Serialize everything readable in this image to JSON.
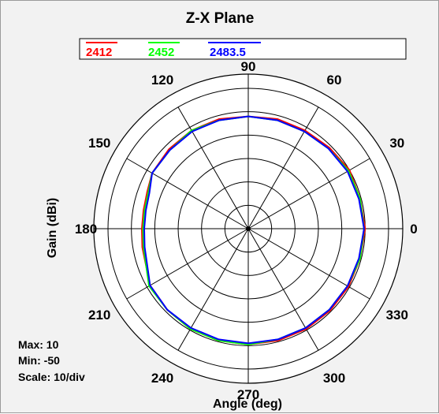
{
  "chart_data": {
    "type": "polar",
    "title": "Z-X Plane",
    "xlabel": "Angle  (deg)",
    "ylabel": "Gain  (dBi)",
    "radial_range": [
      -50,
      10
    ],
    "radial_step": 10,
    "angle_ticks": [
      "0",
      "30",
      "60",
      "90",
      "120",
      "150",
      "180",
      "210",
      "240",
      "270",
      "300",
      "330"
    ],
    "angle_tick_values": [
      0,
      30,
      60,
      90,
      120,
      150,
      180,
      210,
      240,
      270,
      300,
      330
    ],
    "info": {
      "max": "Max: 10",
      "min": "Min: -50",
      "scale": "Scale: 10/div"
    },
    "series": [
      {
        "name": "2412",
        "color": "#ff0000",
        "angles": [
          0,
          15,
          30,
          45,
          60,
          75,
          90,
          105,
          120,
          135,
          150,
          160,
          170,
          180,
          190,
          210,
          225,
          240,
          255,
          270,
          285,
          300,
          315,
          330,
          345
        ],
        "values": [
          0,
          -0.5,
          0,
          -1,
          -1.5,
          -1.5,
          -2,
          -1.5,
          -1.5,
          -2,
          -2.5,
          -4,
          -4.5,
          -4.5,
          -4,
          -1.5,
          -1,
          -0.5,
          -0.5,
          -0.5,
          -0.5,
          -0.5,
          -0.5,
          -0.5,
          -0.5
        ]
      },
      {
        "name": "2452",
        "color": "#00ff00",
        "angles": [
          0,
          15,
          30,
          45,
          60,
          75,
          90,
          105,
          120,
          135,
          150,
          160,
          170,
          180,
          190,
          210,
          225,
          240,
          255,
          270,
          285,
          300,
          315,
          330,
          345
        ],
        "values": [
          -0.5,
          -0.5,
          -0.5,
          -1.5,
          -2,
          -2,
          -2,
          -2,
          -1.5,
          -2.5,
          -2.5,
          -4.5,
          -5,
          -5,
          -4.5,
          -1,
          -1,
          -0.5,
          -0.5,
          -0.5,
          -1,
          -1,
          -1,
          -1,
          -0.5
        ]
      },
      {
        "name": "2483.5",
        "color": "#0000ff",
        "angles": [
          0,
          15,
          30,
          45,
          60,
          75,
          90,
          105,
          120,
          135,
          150,
          160,
          170,
          180,
          190,
          210,
          225,
          240,
          255,
          270,
          285,
          300,
          315,
          330,
          345
        ],
        "values": [
          -0.5,
          -1,
          -1,
          -1.5,
          -2,
          -2,
          -2,
          -2,
          -2,
          -2.5,
          -2.5,
          -5,
          -5.5,
          -5.5,
          -5,
          -1.5,
          -1,
          -1,
          -1,
          -1,
          -1,
          -1,
          -1,
          -1,
          -1
        ]
      }
    ]
  }
}
